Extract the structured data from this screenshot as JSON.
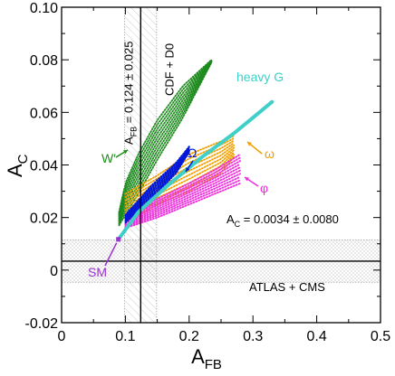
{
  "chart_data": {
    "type": "scatter",
    "xlabel": "A",
    "xlabel_sub": "FB",
    "ylabel": "A",
    "ylabel_sub": "C",
    "xlim": [
      0,
      0.5
    ],
    "ylim": [
      -0.02,
      0.1
    ],
    "x_ticks": [
      0,
      0.1,
      0.2,
      0.3,
      0.4,
      0.5
    ],
    "y_ticks": [
      -0.02,
      0,
      0.02,
      0.04,
      0.06,
      0.08,
      0.1
    ],
    "x_tick_labels": [
      "0",
      "0.1",
      "0.2",
      "0.3",
      "0.4",
      "0.5"
    ],
    "y_tick_labels": [
      "-0.02",
      "0",
      "0.02",
      "0.04",
      "0.06",
      "0.08",
      "0.10"
    ],
    "grid": false,
    "measurements": {
      "afb": {
        "central": 0.124,
        "error": 0.025,
        "label_prefix": "A",
        "label_sub": "FB",
        "label_value": " = 0.124 ± 0.025",
        "experiment": "CDF + D0"
      },
      "ac": {
        "central": 0.0034,
        "error": 0.008,
        "label_prefix": "A",
        "label_sub": "C",
        "label_value": " = 0.0034 ± 0.0080",
        "experiment": "ATLAS + CMS"
      }
    },
    "sm_point": {
      "x": 0.089,
      "y": 0.0117,
      "label": "SM",
      "color": "#9932cc"
    },
    "series": [
      {
        "name": "W′",
        "color": "#1e8b1e",
        "style": "dotted-band",
        "lower": [
          [
            0.09,
            0.017
          ],
          [
            0.12,
            0.029
          ],
          [
            0.15,
            0.042
          ],
          [
            0.19,
            0.058
          ],
          [
            0.22,
            0.072
          ],
          [
            0.235,
            0.079
          ]
        ],
        "upper": [
          [
            0.09,
            0.022
          ],
          [
            0.1,
            0.033
          ],
          [
            0.12,
            0.044
          ],
          [
            0.15,
            0.057
          ],
          [
            0.19,
            0.07
          ],
          [
            0.235,
            0.08
          ]
        ]
      },
      {
        "name": "ω",
        "color": "#f0a000",
        "style": "dotted-band",
        "lower": [
          [
            0.1,
            0.018
          ],
          [
            0.15,
            0.025
          ],
          [
            0.2,
            0.03
          ],
          [
            0.25,
            0.037
          ],
          [
            0.27,
            0.043
          ]
        ],
        "upper": [
          [
            0.1,
            0.029
          ],
          [
            0.15,
            0.036
          ],
          [
            0.2,
            0.044
          ],
          [
            0.25,
            0.049
          ],
          [
            0.27,
            0.051
          ]
        ]
      },
      {
        "name": "φ",
        "color": "#ee2ddc",
        "style": "dotted-band",
        "lower": [
          [
            0.1,
            0.016
          ],
          [
            0.15,
            0.02
          ],
          [
            0.2,
            0.025
          ],
          [
            0.24,
            0.029
          ],
          [
            0.28,
            0.033
          ]
        ],
        "upper": [
          [
            0.1,
            0.021
          ],
          [
            0.15,
            0.027
          ],
          [
            0.2,
            0.033
          ],
          [
            0.24,
            0.038
          ],
          [
            0.28,
            0.044
          ]
        ]
      },
      {
        "name": "Ω",
        "color": "#0018d8",
        "style": "dotted-band",
        "lower": [
          [
            0.1,
            0.018
          ],
          [
            0.14,
            0.027
          ],
          [
            0.18,
            0.037
          ],
          [
            0.2,
            0.045
          ]
        ],
        "upper": [
          [
            0.1,
            0.021
          ],
          [
            0.14,
            0.032
          ],
          [
            0.18,
            0.041
          ],
          [
            0.2,
            0.047
          ]
        ]
      },
      {
        "name": "heavy G",
        "color": "#3ed0c8",
        "style": "solid",
        "points": [
          [
            0.089,
            0.0117
          ],
          [
            0.12,
            0.022
          ],
          [
            0.17,
            0.033
          ],
          [
            0.22,
            0.043
          ],
          [
            0.27,
            0.052
          ],
          [
            0.3,
            0.058
          ],
          [
            0.33,
            0.064
          ]
        ]
      }
    ]
  }
}
